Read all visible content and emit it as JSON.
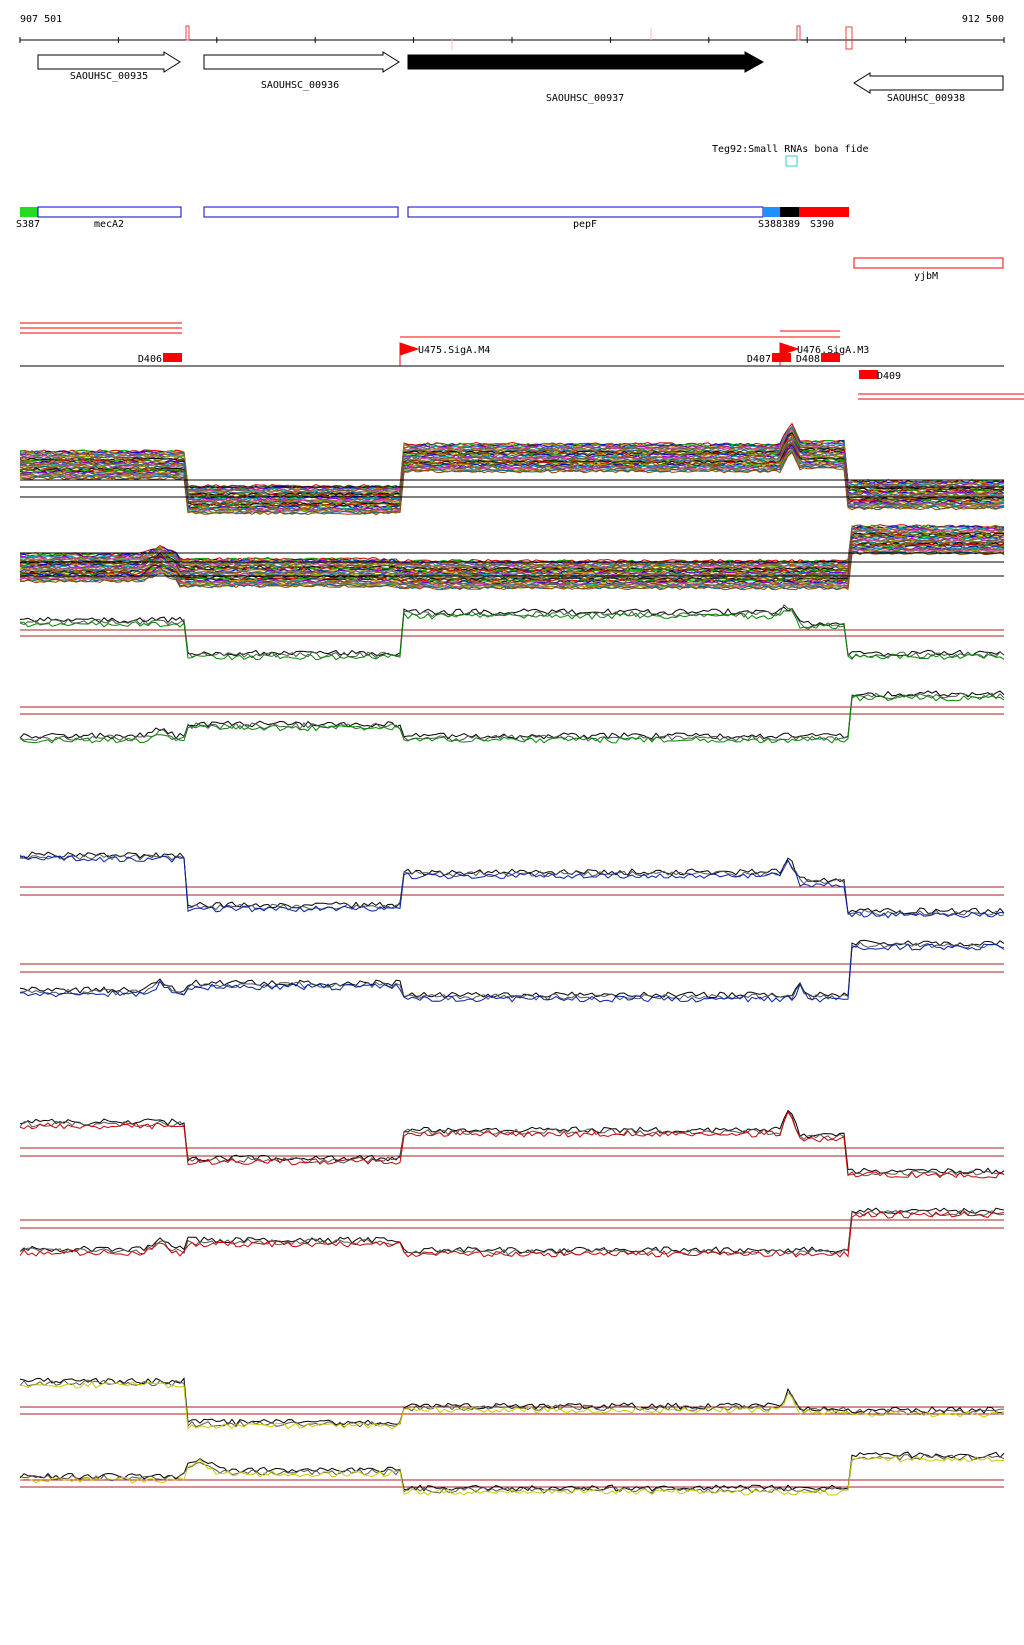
{
  "coords": {
    "start": "907 501",
    "end": "912 500"
  },
  "genes": [
    {
      "label": "SAOUHSC_00935",
      "strand": "+",
      "fill": "#ffffff"
    },
    {
      "label": "SAOUHSC_00936",
      "strand": "+",
      "fill": "#ffffff"
    },
    {
      "label": "SAOUHSC_00937",
      "strand": "+",
      "fill": "#000000"
    },
    {
      "label": "SAOUHSC_00938",
      "strand": "-",
      "fill": "#ffffff"
    }
  ],
  "small_rna": {
    "label": "Teg92:Small RNAs bona fide",
    "color": "#33cccc"
  },
  "segments": [
    {
      "label": "S387",
      "color": "#22dd22"
    },
    {
      "label": "mecA2",
      "color": "#0000cc"
    },
    {
      "label": "",
      "color": "#0000cc"
    },
    {
      "label": "pepF",
      "color": "#0000cc"
    },
    {
      "label": "S388",
      "color": "#1e90ff"
    },
    {
      "label": "389",
      "color": "#000000"
    },
    {
      "label": "S390",
      "color": "#ff0000"
    }
  ],
  "other_feature": {
    "label": "yjbM",
    "color": "#ff0000"
  },
  "promoters": [
    {
      "label": "U475.SigA.M4"
    },
    {
      "label": "U476.SigA.M3"
    }
  ],
  "downregions": [
    {
      "label": "D406"
    },
    {
      "label": "D407"
    },
    {
      "label": "D408"
    },
    {
      "label": "D409"
    }
  ],
  "colors": {
    "green": "#008800",
    "blue": "#0022aa",
    "red": "#cc0000",
    "yellow": "#cccc00",
    "threshold": "#aa2222"
  }
}
